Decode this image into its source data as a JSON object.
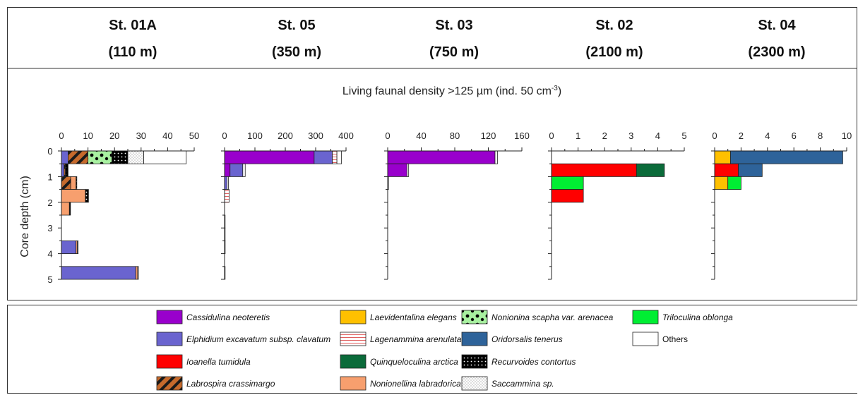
{
  "chart_data": {
    "type": "bar",
    "orientation": "horizontal-stacked",
    "density_label": "Living faunal density >125 µm (ind. 50 cm",
    "density_exp": "-3",
    "density_close": ")",
    "ylabel": "Core depth (cm)",
    "y_ticks": [
      "0",
      "1",
      "2",
      "3",
      "4",
      "5"
    ],
    "species": [
      {
        "key": "cass",
        "name": "Cassidulina neoteretis",
        "color": "#9900CC",
        "pattern": "solid"
      },
      {
        "key": "elph",
        "name": "Elphidium excavatum subsp. clavatum",
        "color": "#6A64CF",
        "pattern": "solid"
      },
      {
        "key": "ioan",
        "name": "Ioanella tumidula",
        "color": "#FF0000",
        "pattern": "solid"
      },
      {
        "key": "labr",
        "name": "Labrospira crassimargo",
        "color": "#C66A2C",
        "pattern": "diagonal"
      },
      {
        "key": "laev",
        "name": "Laevidentalina elegans",
        "color": "#FFC000",
        "pattern": "solid"
      },
      {
        "key": "lage",
        "name": "Lagenammina arenulata",
        "color": "#E06060",
        "pattern": "hlines"
      },
      {
        "key": "quin",
        "name": "Quinqueloculina arctica",
        "color": "#0B6B3A",
        "pattern": "solid"
      },
      {
        "key": "nonl",
        "name": "Nonionellina labradorica",
        "color": "#F79F6E",
        "pattern": "solid"
      },
      {
        "key": "nons",
        "name": "Nonionina scapha var. arenacea",
        "color": "#A8F0A0",
        "pattern": "dots-big"
      },
      {
        "key": "orid",
        "name": "Oridorsalis tenerus",
        "color": "#2E639A",
        "pattern": "solid"
      },
      {
        "key": "recu",
        "name": "Recurvoides contortus",
        "color": "#000000",
        "pattern": "dots-white"
      },
      {
        "key": "sacc",
        "name": "Saccammina sp.",
        "color": "#DDDDDD",
        "pattern": "stipple"
      },
      {
        "key": "tril",
        "name": "Triloculina oblonga",
        "color": "#00EE33",
        "pattern": "solid"
      },
      {
        "key": "oth",
        "name": "Others",
        "color": "#FFFFFF",
        "pattern": "solid"
      }
    ],
    "stations": [
      {
        "name": "St. 01A",
        "depth": "(110 m)",
        "xlim": [
          0,
          50
        ],
        "ticks": [
          0,
          10,
          20,
          30,
          40,
          50
        ],
        "intervals": [
          {
            "depth": [
              0,
              0.5
            ],
            "stack": [
              [
                "elph",
                2.5
              ],
              [
                "labr",
                7.5
              ],
              [
                "nons",
                9
              ],
              [
                "recu",
                6
              ],
              [
                "sacc",
                6
              ],
              [
                "oth",
                16
              ]
            ]
          },
          {
            "depth": [
              0.5,
              1
            ],
            "stack": [
              [
                "elph",
                1
              ],
              [
                "labr",
                0.5
              ],
              [
                "recu",
                1
              ]
            ]
          },
          {
            "depth": [
              1,
              1.5
            ],
            "stack": [
              [
                "labr",
                3.5
              ],
              [
                "nonl",
                2
              ],
              [
                "recu",
                0.3
              ]
            ]
          },
          {
            "depth": [
              1.5,
              2
            ],
            "stack": [
              [
                "nonl",
                9
              ],
              [
                "recu",
                1.2
              ]
            ]
          },
          {
            "depth": [
              2,
              2.5
            ],
            "stack": [
              [
                "nonl",
                3
              ],
              [
                "recu",
                0.4
              ]
            ]
          },
          {
            "depth": [
              3.5,
              4
            ],
            "stack": [
              [
                "elph",
                5.5
              ],
              [
                "nonl",
                0.5
              ],
              [
                "oth",
                0.3
              ]
            ]
          },
          {
            "depth": [
              4.5,
              5
            ],
            "stack": [
              [
                "elph",
                28
              ],
              [
                "nonl",
                0.7
              ],
              [
                "oth",
                0.3
              ]
            ]
          }
        ]
      },
      {
        "name": "St. 05",
        "depth": "(350 m)",
        "xlim": [
          0,
          400
        ],
        "ticks": [
          0,
          100,
          200,
          300,
          400
        ],
        "intervals": [
          {
            "depth": [
              0,
              0.5
            ],
            "stack": [
              [
                "cass",
                295
              ],
              [
                "elph",
                60
              ],
              [
                "lage",
                15
              ],
              [
                "oth",
                15
              ]
            ]
          },
          {
            "depth": [
              0.5,
              1
            ],
            "stack": [
              [
                "cass",
                18
              ],
              [
                "elph",
                42
              ],
              [
                "oth",
                8
              ]
            ]
          },
          {
            "depth": [
              1,
              1.5
            ],
            "stack": [
              [
                "elph",
                8
              ],
              [
                "oth",
                5
              ]
            ]
          },
          {
            "depth": [
              1.5,
              2
            ],
            "stack": [
              [
                "lage",
                15
              ]
            ]
          },
          {
            "depth": [
              2.5,
              3
            ],
            "stack": [
              [
                "oth",
                1
              ]
            ]
          },
          {
            "depth": [
              3,
              3.5
            ],
            "stack": [
              [
                "oth",
                1
              ]
            ]
          },
          {
            "depth": [
              3.5,
              4
            ],
            "stack": [
              [
                "oth",
                2
              ]
            ]
          },
          {
            "depth": [
              4.5,
              5
            ],
            "stack": [
              [
                "oth",
                1
              ]
            ]
          }
        ]
      },
      {
        "name": "St. 03",
        "depth": "(750 m)",
        "xlim": [
          0,
          160
        ],
        "ticks": [
          0,
          40,
          80,
          120,
          160
        ],
        "intervals": [
          {
            "depth": [
              0,
              0.5
            ],
            "stack": [
              [
                "cass",
                128
              ],
              [
                "oth",
                3
              ]
            ]
          },
          {
            "depth": [
              0.5,
              1
            ],
            "stack": [
              [
                "cass",
                23
              ],
              [
                "oth",
                2
              ]
            ]
          },
          {
            "depth": [
              1,
              1.5
            ],
            "stack": [
              [
                "oth",
                1
              ]
            ]
          }
        ]
      },
      {
        "name": "St. 02",
        "depth": "(2100 m)",
        "xlim": [
          0,
          5
        ],
        "ticks": [
          0,
          1,
          2,
          3,
          4,
          5
        ],
        "intervals": [
          {
            "depth": [
              0.5,
              1
            ],
            "stack": [
              [
                "ioan",
                3.2
              ],
              [
                "quin",
                1.05
              ]
            ]
          },
          {
            "depth": [
              1,
              1.5
            ],
            "stack": [
              [
                "tril",
                1.2
              ]
            ]
          },
          {
            "depth": [
              1.5,
              2
            ],
            "stack": [
              [
                "ioan",
                1.2
              ]
            ]
          }
        ]
      },
      {
        "name": "St. 04",
        "depth": "(2300 m)",
        "xlim": [
          0,
          10
        ],
        "ticks": [
          0,
          2,
          4,
          6,
          8,
          10
        ],
        "intervals": [
          {
            "depth": [
              0,
              0.5
            ],
            "stack": [
              [
                "laev",
                1.2
              ],
              [
                "orid",
                8.5
              ]
            ]
          },
          {
            "depth": [
              0.5,
              1
            ],
            "stack": [
              [
                "ioan",
                1.8
              ],
              [
                "orid",
                1.8
              ]
            ]
          },
          {
            "depth": [
              1,
              1.5
            ],
            "stack": [
              [
                "laev",
                1
              ],
              [
                "tril",
                1
              ]
            ]
          }
        ]
      }
    ]
  }
}
